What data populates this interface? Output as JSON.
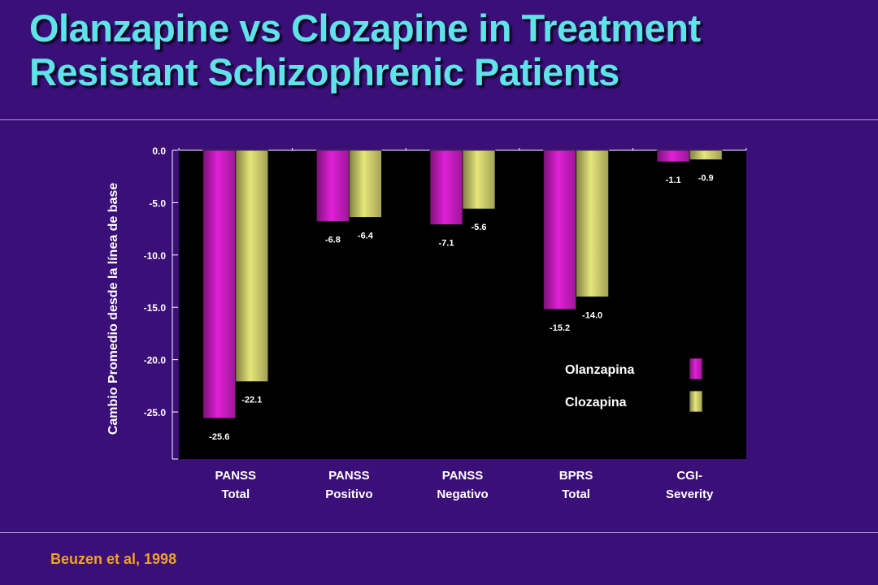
{
  "slide": {
    "title_line1": "Olanzapine vs Clozapine in Treatment",
    "title_line2": "Resistant Schizophrenic Patients",
    "citation": "Beuzen et al, 1998"
  },
  "chart_data": {
    "type": "bar",
    "ylabel": "Cambio Promedio desde la línea de base",
    "ylim": [
      -29.5,
      0
    ],
    "yticks": [
      0,
      -5,
      -10,
      -15,
      -20,
      -25
    ],
    "ytick_labels": [
      "0.0",
      "-5.0",
      "-10.0",
      "-15.0",
      "-20.0",
      "-25.0"
    ],
    "categories": [
      [
        "PANSS",
        "Total"
      ],
      [
        "PANSS",
        "Positivo"
      ],
      [
        "PANSS",
        "Negativo"
      ],
      [
        "BPRS",
        "Total"
      ],
      [
        "CGI-",
        "Severity"
      ]
    ],
    "series": [
      {
        "name": "Olanzapina",
        "color": "#e020d8",
        "values": [
          -25.6,
          -6.8,
          -7.1,
          -15.2,
          -1.1
        ],
        "labels": [
          "-25.6",
          "-6.8",
          "-7.1",
          "-15.2",
          "-1.1"
        ]
      },
      {
        "name": "Clozapina",
        "color": "#e6e67a",
        "values": [
          -22.1,
          -6.4,
          -5.6,
          -14.0,
          -0.9
        ],
        "labels": [
          "-22.1",
          "-6.4",
          "-5.6",
          "-14.0",
          "-0.9"
        ]
      }
    ],
    "legend_position": "lower-right",
    "grid": false,
    "plot_background": "#000000"
  }
}
